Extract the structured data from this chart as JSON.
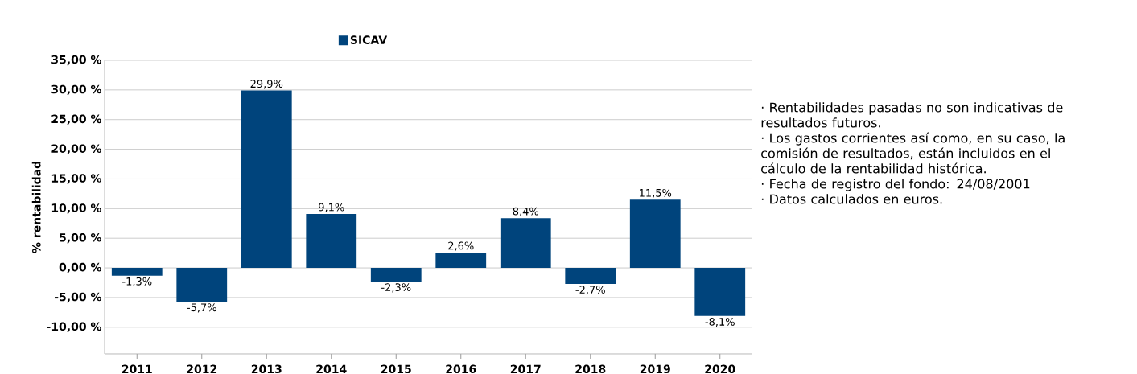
{
  "chart_data": {
    "type": "bar",
    "categories": [
      "2011",
      "2012",
      "2013",
      "2014",
      "2015",
      "2016",
      "2017",
      "2018",
      "2019",
      "2020"
    ],
    "series": [
      {
        "name": "SICAV",
        "color": "#00447c",
        "values": [
          -1.3,
          -5.7,
          29.9,
          9.1,
          -2.3,
          2.6,
          8.4,
          -2.7,
          11.5,
          -8.1
        ],
        "value_labels": [
          "-1,3%",
          "-5,7%",
          "29,9%",
          "9,1%",
          "-2,3%",
          "2,6%",
          "8,4%",
          "-2,7%",
          "11,5%",
          "-8,1%"
        ]
      }
    ],
    "ylabel": "% rentabilidad",
    "ylim": [
      -14.5,
      35
    ],
    "yticks": [
      {
        "value": -10,
        "label": "-10,00 %"
      },
      {
        "value": -5,
        "label": "-5,00 %"
      },
      {
        "value": 0,
        "label": "0,00 %"
      },
      {
        "value": 5,
        "label": "5,00 %"
      },
      {
        "value": 10,
        "label": "10,00 %"
      },
      {
        "value": 15,
        "label": "15,00 %"
      },
      {
        "value": 20,
        "label": "20,00 %"
      },
      {
        "value": 25,
        "label": "25,00 %"
      },
      {
        "value": 30,
        "label": "30,00 %"
      },
      {
        "value": 35,
        "label": "35,00 %"
      }
    ],
    "grid": "y",
    "legend": "top",
    "annotations": [
      "· Rentabilidades pasadas no son indicativas de resultados futuros.",
      "· Los gastos corrientes así como, en su caso, la comisión de resultados, están incluidos en el cálculo de la rentabilidad histórica.",
      "· Fecha de registro del fondo: 24/08/2001",
      "· Datos calculados en euros."
    ]
  }
}
